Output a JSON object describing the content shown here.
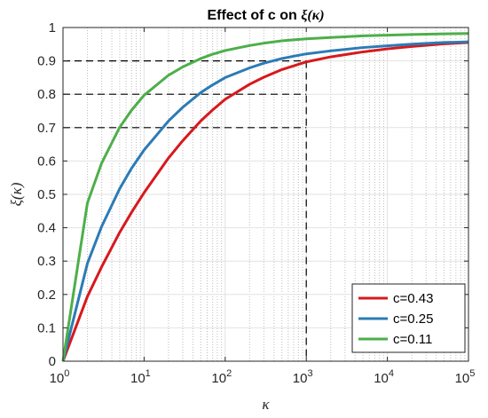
{
  "chart_data": {
    "type": "line",
    "title_prefix": "Effect of c on ",
    "title_math": "ξ(κ)",
    "xlabel": "κ",
    "ylabel": "ξ(κ)",
    "x_scale": "log",
    "xlim": [
      1,
      100000
    ],
    "ylim": [
      0,
      1
    ],
    "grid": true,
    "legend_position": "bottom-right",
    "x_ticks": [
      {
        "value": 1,
        "base": "10",
        "exp": "0"
      },
      {
        "value": 10,
        "base": "10",
        "exp": "1"
      },
      {
        "value": 100,
        "base": "10",
        "exp": "2"
      },
      {
        "value": 1000,
        "base": "10",
        "exp": "3"
      },
      {
        "value": 10000,
        "base": "10",
        "exp": "4"
      },
      {
        "value": 100000,
        "base": "10",
        "exp": "5"
      }
    ],
    "y_ticks": [
      {
        "value": 0,
        "label": "0"
      },
      {
        "value": 0.1,
        "label": "0.1"
      },
      {
        "value": 0.2,
        "label": "0.2"
      },
      {
        "value": 0.3,
        "label": "0.3"
      },
      {
        "value": 0.4,
        "label": "0.4"
      },
      {
        "value": 0.5,
        "label": "0.5"
      },
      {
        "value": 0.6,
        "label": "0.6"
      },
      {
        "value": 0.7,
        "label": "0.7"
      },
      {
        "value": 0.8,
        "label": "0.8"
      },
      {
        "value": 0.9,
        "label": "0.9"
      },
      {
        "value": 1,
        "label": "1"
      }
    ],
    "x": [
      1,
      2,
      3,
      5,
      7,
      10,
      20,
      30,
      50,
      70,
      100,
      200,
      300,
      500,
      700,
      1000,
      2000,
      5000,
      10000,
      20000,
      50000,
      100000
    ],
    "series": [
      {
        "name": "c=0.43",
        "color": "#d7191c",
        "values": [
          0,
          0.194,
          0.283,
          0.386,
          0.446,
          0.505,
          0.609,
          0.661,
          0.72,
          0.753,
          0.785,
          0.83,
          0.851,
          0.874,
          0.885,
          0.897,
          0.912,
          0.927,
          0.936,
          0.943,
          0.951,
          0.955
        ]
      },
      {
        "name": "c=0.25",
        "color": "#2c7bb6",
        "values": [
          0,
          0.293,
          0.404,
          0.517,
          0.578,
          0.633,
          0.72,
          0.761,
          0.805,
          0.828,
          0.85,
          0.879,
          0.893,
          0.907,
          0.914,
          0.921,
          0.93,
          0.94,
          0.945,
          0.95,
          0.955,
          0.957
        ]
      },
      {
        "name": "c=0.11",
        "color": "#4daf4a",
        "values": [
          0,
          0.474,
          0.594,
          0.701,
          0.752,
          0.797,
          0.857,
          0.882,
          0.907,
          0.92,
          0.931,
          0.946,
          0.953,
          0.96,
          0.963,
          0.966,
          0.97,
          0.975,
          0.977,
          0.979,
          0.981,
          0.982
        ]
      }
    ],
    "reference_lines": [
      {
        "y": 0.7,
        "x": 1000
      },
      {
        "y": 0.8,
        "x": 1000
      },
      {
        "y": 0.9,
        "x": 1000
      }
    ]
  }
}
